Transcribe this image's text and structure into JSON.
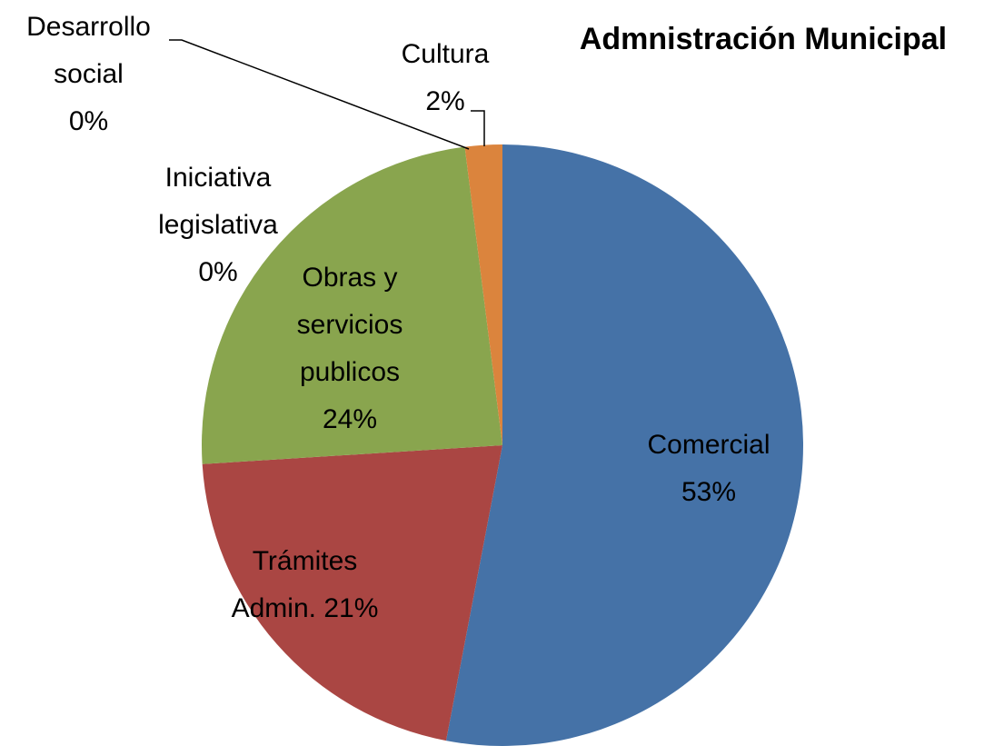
{
  "chart_data": {
    "type": "pie",
    "title": "Admnistración Municipal",
    "categories": [
      "Comercial",
      "Trámites Admin.",
      "Obras y servicios publicos",
      "Iniciativa legislativa",
      "Desarrollo social",
      "Cultura"
    ],
    "values": [
      53,
      21,
      24,
      0,
      0,
      2
    ],
    "value_labels": [
      "53%",
      "21%",
      "24%",
      "0%",
      "0%",
      "2%"
    ],
    "colors": [
      "#4572a7",
      "#aa4643",
      "#89a54e",
      "#71588f",
      "#4198af",
      "#db843d"
    ]
  }
}
